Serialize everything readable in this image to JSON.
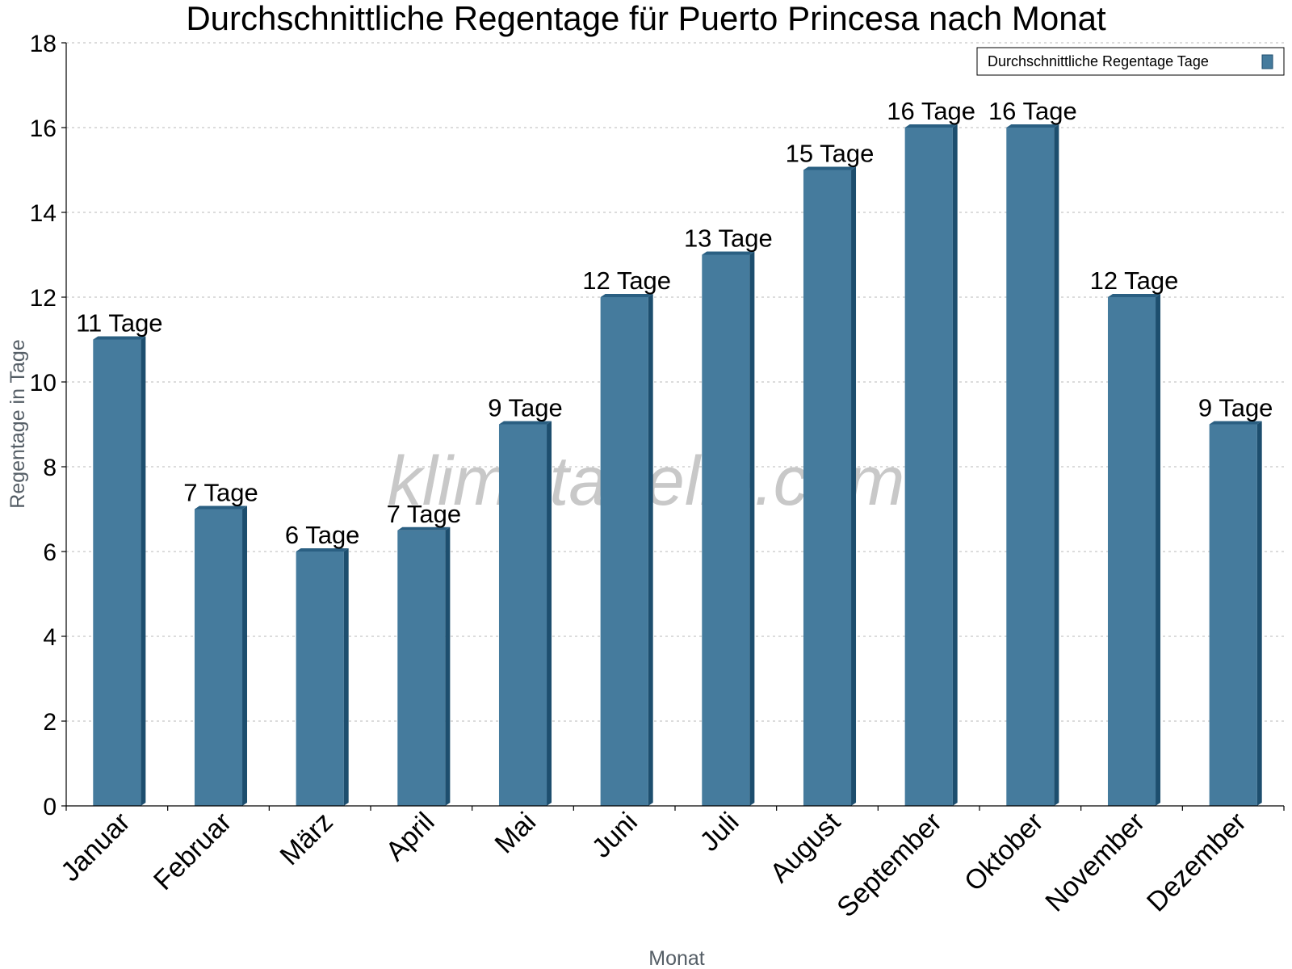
{
  "chart_data": {
    "type": "bar",
    "title": "Durchschnittliche Regentage für Puerto Princesa nach Monat",
    "xlabel": "Monat",
    "ylabel": "Regentage in Tage",
    "ylim": [
      0,
      18
    ],
    "yticks": [
      0,
      2,
      4,
      6,
      8,
      10,
      12,
      14,
      16,
      18
    ],
    "grid": true,
    "legend_position": "top-right",
    "categories": [
      "Januar",
      "Februar",
      "März",
      "April",
      "Mai",
      "Juni",
      "Juli",
      "August",
      "September",
      "Oktober",
      "November",
      "Dezember"
    ],
    "series": [
      {
        "name": "Durchschnittliche Regentage Tage",
        "values": [
          11,
          7,
          6,
          6.5,
          9,
          12,
          13,
          15,
          16,
          16,
          12,
          9
        ],
        "labels": [
          "11 Tage",
          "7 Tage",
          "6 Tage",
          "7 Tage",
          "9 Tage",
          "12 Tage",
          "13 Tage",
          "15 Tage",
          "16 Tage",
          "16 Tage",
          "12 Tage",
          "9 Tage"
        ]
      }
    ],
    "colors": {
      "bar_front": "#457b9d",
      "bar_side": "#1d4e6e",
      "bar_top": "#2a5f82",
      "grid": "#c8c8c8",
      "axis": "#000000"
    }
  },
  "watermark": "klimatabelle.com"
}
